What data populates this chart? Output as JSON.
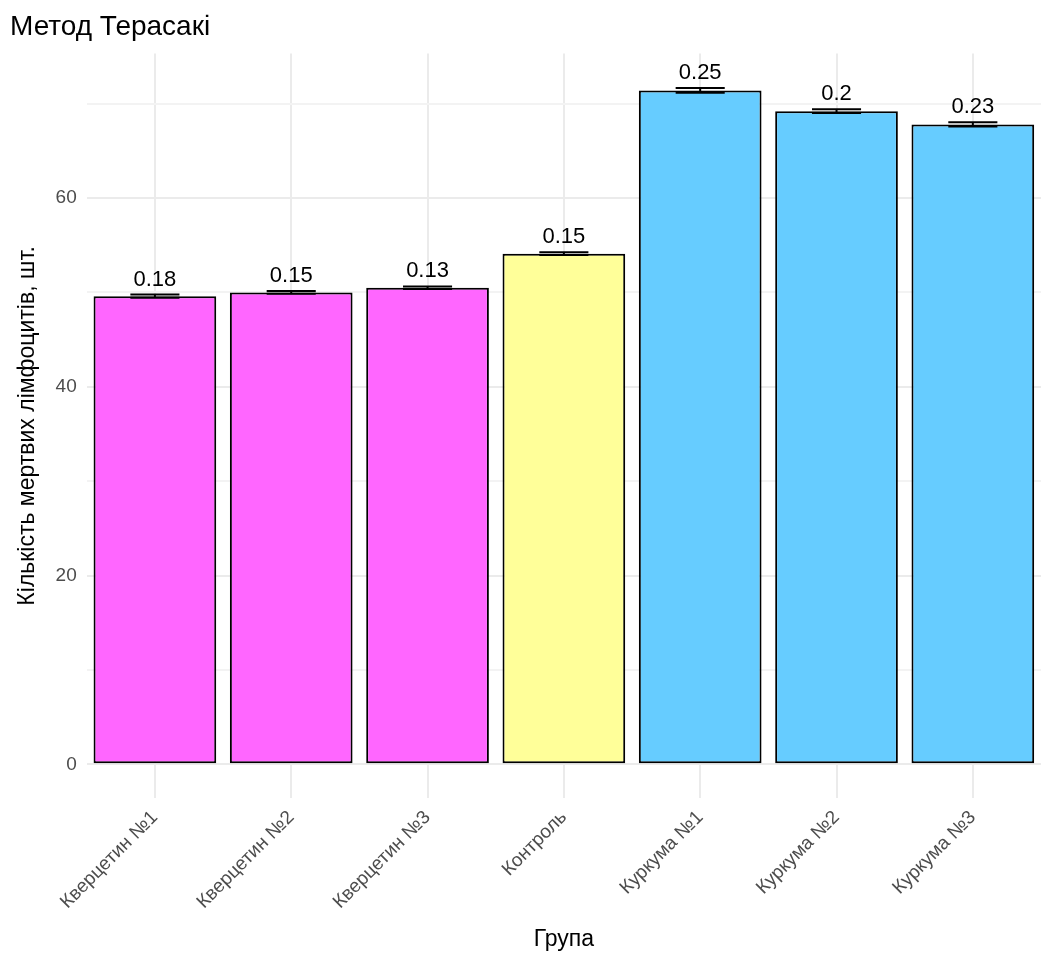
{
  "chart_data": {
    "type": "bar",
    "title": "Метод Терасакі",
    "xlabel": "Група",
    "ylabel": "Кількість мертвих лімфоцитів, шт.",
    "categories": [
      "Кверцетин №1",
      "Кверцетин №2",
      "Кверцетин №3",
      "Контроль",
      "Куркума №1",
      "Куркума №2",
      "Куркума №3"
    ],
    "values": [
      49.6,
      50.0,
      50.5,
      54.1,
      71.4,
      69.2,
      67.8
    ],
    "errors": [
      0.18,
      0.15,
      0.13,
      0.15,
      0.25,
      0.2,
      0.23
    ],
    "annotations": [
      {
        "text": "0.18",
        "x": "Кверцетин №1",
        "y": 49.78
      },
      {
        "text": "0.15",
        "x": "Кверцетин №2",
        "y": 50.15
      },
      {
        "text": "0.13",
        "x": "Кверцетин №3",
        "y": 50.63
      },
      {
        "text": "0.15",
        "x": "Контроль",
        "y": 54.25
      },
      {
        "text": "0.25",
        "x": "Куркума №1",
        "y": 71.65
      },
      {
        "text": "0.2",
        "x": "Куркума №2",
        "y": 69.4
      },
      {
        "text": "0.23",
        "x": "Куркума №3",
        "y": 68.03
      }
    ],
    "colors": [
      "#ff66ff",
      "#ff66ff",
      "#ff66ff",
      "#ffff99",
      "#66ccff",
      "#66ccff",
      "#66ccff"
    ],
    "ylim": [
      -3.6,
      75.3
    ],
    "yticks": [
      0,
      {
        "value": 10,
        "label": null
      },
      20,
      {
        "value": 30,
        "label": null
      },
      40,
      {
        "value": 50,
        "label": null
      },
      60,
      {
        "value": 70,
        "label": null
      }
    ],
    "grid": true
  }
}
